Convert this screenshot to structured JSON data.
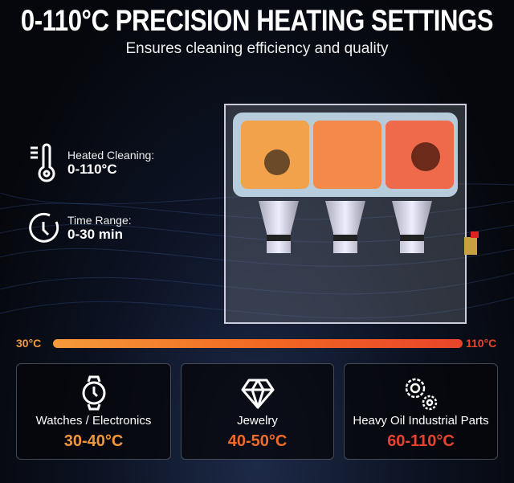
{
  "title": "0-110°C PRECISION HEATING SETTINGS",
  "subtitle": "Ensures cleaning efficiency and quality",
  "specs": [
    {
      "icon": "thermometer-icon",
      "label": "Heated Cleaning:",
      "value": "0-110°C"
    },
    {
      "icon": "clock-icon",
      "label": "Time Range:",
      "value": "0-30 min"
    }
  ],
  "scale": {
    "min_label": "30°C",
    "max_label": "110°C",
    "gradient": [
      "#f59a3a",
      "#e8442a"
    ]
  },
  "cards": [
    {
      "icon": "watch-icon",
      "name": "Watches / Electronics",
      "range": "30-40°C",
      "color": "#f5963a"
    },
    {
      "icon": "diamond-icon",
      "name": "Jewelry",
      "range": "40-50°C",
      "color": "#f06a2a"
    },
    {
      "icon": "gears-icon",
      "name": "Heavy Oil Industrial Parts",
      "range": "60-110°C",
      "color": "#e8432e"
    }
  ]
}
